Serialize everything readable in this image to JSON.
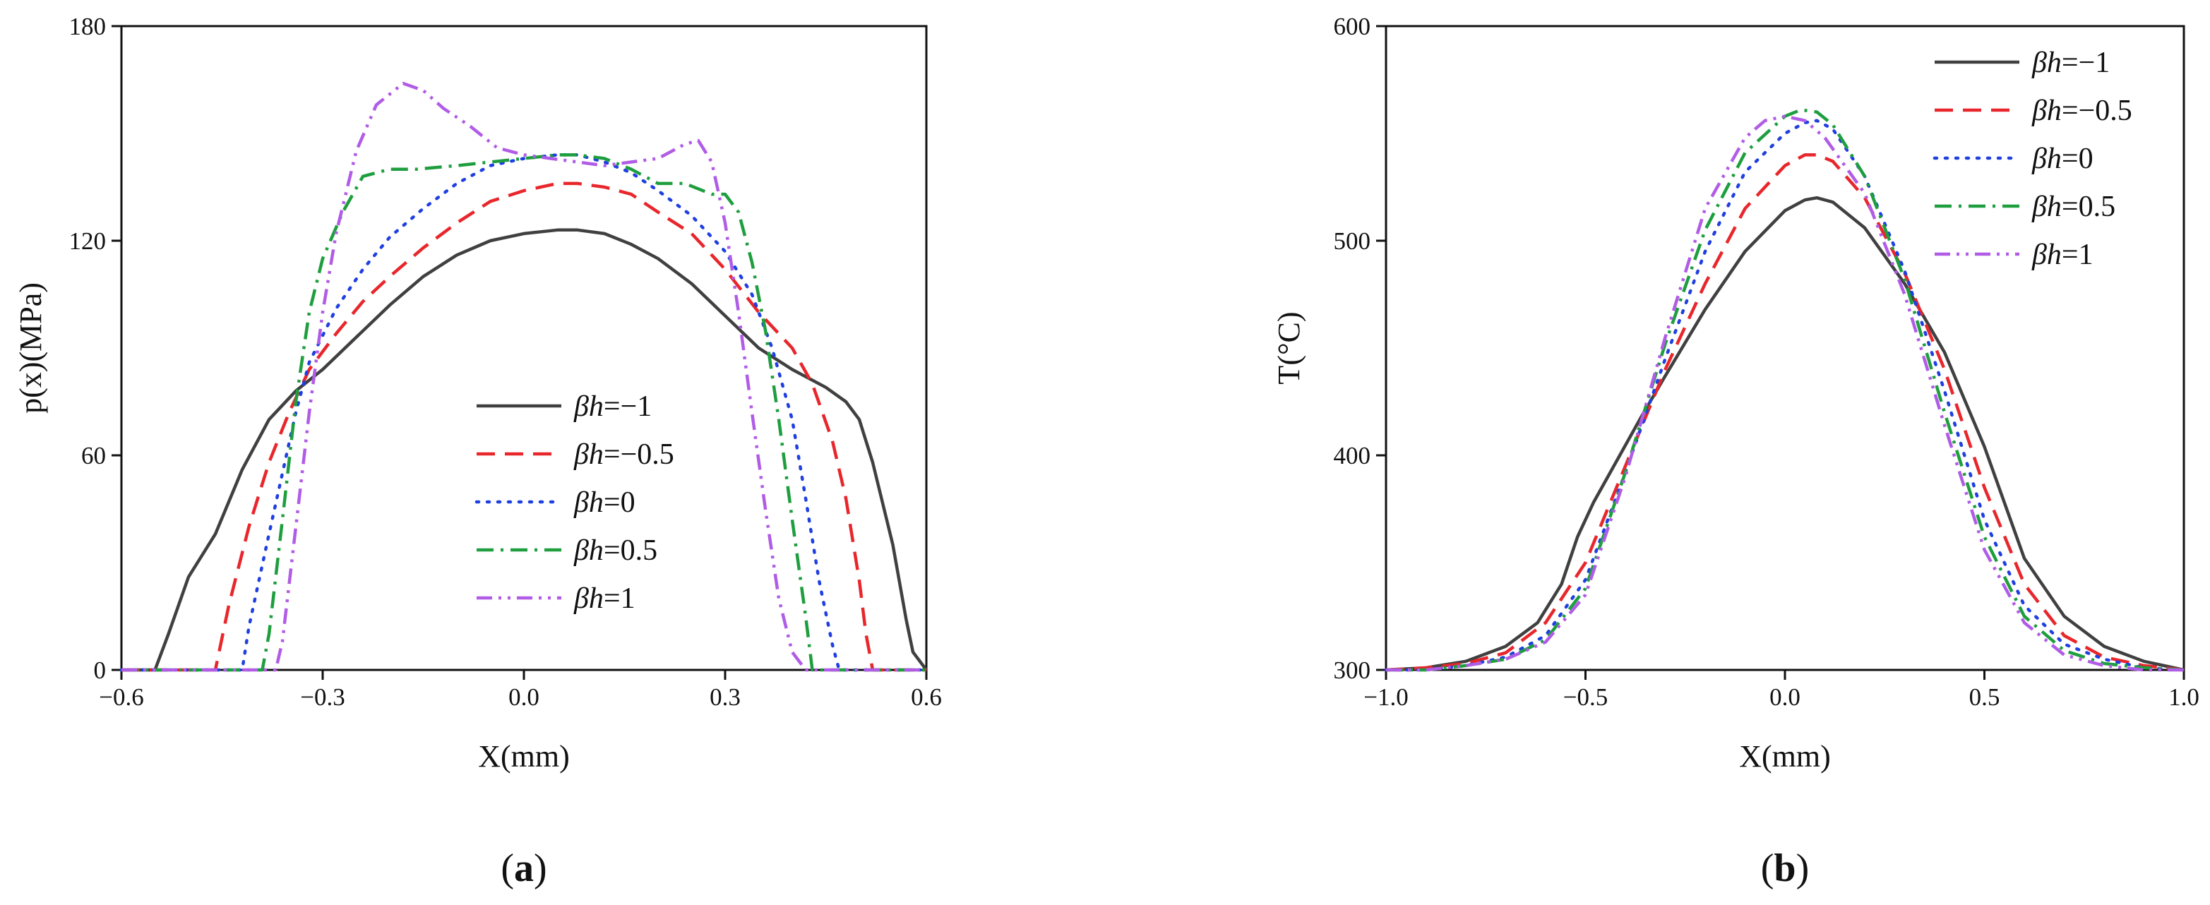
{
  "chart_data": [
    {
      "type": "line",
      "panel_label": "a",
      "xlabel": "X(mm)",
      "ylabel": "p(x)(MPa)",
      "xlim": [
        -0.6,
        0.6
      ],
      "ylim": [
        0,
        180
      ],
      "xticks": [
        -0.6,
        -0.3,
        0.0,
        0.3,
        0.6
      ],
      "xtick_labels": [
        "−0.6",
        "−0.3",
        "0.0",
        "0.3",
        "0.6"
      ],
      "yticks": [
        0,
        60,
        120,
        180
      ],
      "ytick_labels": [
        "0",
        "60",
        "120",
        "180"
      ],
      "legend_position": "center-right",
      "series": [
        {
          "name": "=−1",
          "color": "#404040",
          "dash": "solid",
          "x": [
            -0.6,
            -0.55,
            -0.53,
            -0.5,
            -0.46,
            -0.42,
            -0.38,
            -0.34,
            -0.3,
            -0.25,
            -0.2,
            -0.15,
            -0.1,
            -0.05,
            0.0,
            0.05,
            0.08,
            0.12,
            0.16,
            0.2,
            0.25,
            0.3,
            0.35,
            0.4,
            0.45,
            0.48,
            0.5,
            0.52,
            0.55,
            0.57,
            0.58,
            0.6
          ],
          "y": [
            0,
            0,
            10,
            26,
            38,
            56,
            70,
            78,
            84,
            93,
            102,
            110,
            116,
            120,
            122,
            123,
            123,
            122,
            119,
            115,
            108,
            99,
            90,
            84,
            79,
            75,
            70,
            58,
            35,
            14,
            5,
            0
          ]
        },
        {
          "name": "=−0.5",
          "color": "#e8262b",
          "dash": "long-dash",
          "x": [
            -0.6,
            -0.46,
            -0.44,
            -0.41,
            -0.38,
            -0.35,
            -0.32,
            -0.28,
            -0.24,
            -0.2,
            -0.15,
            -0.1,
            -0.05,
            0.0,
            0.05,
            0.08,
            0.12,
            0.16,
            0.2,
            0.25,
            0.3,
            0.35,
            0.4,
            0.43,
            0.46,
            0.48,
            0.5,
            0.51,
            0.52,
            0.6
          ],
          "y": [
            0,
            0,
            18,
            40,
            58,
            72,
            84,
            94,
            103,
            110,
            118,
            125,
            131,
            134,
            136,
            136,
            135,
            133,
            128,
            122,
            112,
            100,
            90,
            80,
            64,
            48,
            25,
            10,
            0,
            0
          ]
        },
        {
          "name": "=0",
          "color": "#1f3fe0",
          "dash": "dotted",
          "x": [
            -0.6,
            -0.42,
            -0.41,
            -0.38,
            -0.36,
            -0.34,
            -0.32,
            -0.28,
            -0.24,
            -0.2,
            -0.15,
            -0.1,
            -0.05,
            0.0,
            0.05,
            0.08,
            0.12,
            0.16,
            0.2,
            0.25,
            0.3,
            0.34,
            0.37,
            0.4,
            0.42,
            0.44,
            0.46,
            0.47,
            0.6
          ],
          "y": [
            0,
            0,
            12,
            38,
            55,
            72,
            86,
            101,
            112,
            121,
            129,
            136,
            141,
            143,
            144,
            144,
            142,
            139,
            134,
            127,
            117,
            105,
            90,
            70,
            48,
            25,
            7,
            0,
            0
          ]
        },
        {
          "name": "=0.5",
          "color": "#1e9e3e",
          "dash": "dash-dot",
          "x": [
            -0.6,
            -0.39,
            -0.38,
            -0.36,
            -0.34,
            -0.32,
            -0.3,
            -0.27,
            -0.24,
            -0.2,
            -0.16,
            -0.1,
            -0.05,
            0.0,
            0.05,
            0.08,
            0.12,
            0.16,
            0.2,
            0.24,
            0.28,
            0.3,
            0.32,
            0.34,
            0.36,
            0.38,
            0.4,
            0.42,
            0.43,
            0.6
          ],
          "y": [
            0,
            0,
            10,
            42,
            75,
            100,
            115,
            128,
            138,
            140,
            140,
            141,
            142,
            143,
            144,
            144,
            143,
            140,
            136,
            136,
            133,
            133,
            128,
            114,
            95,
            70,
            42,
            15,
            0,
            0
          ]
        },
        {
          "name": "=1",
          "color": "#b15ce6",
          "dash": "dash-dot-dot",
          "x": [
            -0.6,
            -0.37,
            -0.36,
            -0.34,
            -0.32,
            -0.3,
            -0.28,
            -0.25,
            -0.22,
            -0.18,
            -0.15,
            -0.12,
            -0.08,
            -0.04,
            0.0,
            0.04,
            0.08,
            0.12,
            0.16,
            0.2,
            0.24,
            0.26,
            0.28,
            0.3,
            0.32,
            0.34,
            0.36,
            0.38,
            0.4,
            0.42,
            0.6
          ],
          "y": [
            0,
            0,
            8,
            40,
            72,
            100,
            122,
            145,
            158,
            164,
            162,
            157,
            152,
            146,
            144,
            143,
            142,
            141,
            142,
            143,
            147,
            148,
            142,
            125,
            100,
            72,
            45,
            20,
            5,
            0,
            0
          ]
        }
      ]
    },
    {
      "type": "line",
      "panel_label": "b",
      "xlabel": "X(mm)",
      "ylabel": "T(°C)",
      "xlim": [
        -1.0,
        1.0
      ],
      "ylim": [
        300,
        600
      ],
      "xticks": [
        -1.0,
        -0.5,
        0.0,
        0.5,
        1.0
      ],
      "xtick_labels": [
        "−1.0",
        "−0.5",
        "0.0",
        "0.5",
        "1.0"
      ],
      "yticks": [
        300,
        400,
        500,
        600
      ],
      "ytick_labels": [
        "300",
        "400",
        "500",
        "600"
      ],
      "legend_position": "top-right",
      "series": [
        {
          "name": "=−1",
          "color": "#404040",
          "dash": "solid",
          "x": [
            -1.0,
            -0.9,
            -0.8,
            -0.7,
            -0.62,
            -0.56,
            -0.52,
            -0.48,
            -0.42,
            -0.36,
            -0.3,
            -0.2,
            -0.1,
            0.0,
            0.05,
            0.08,
            0.12,
            0.2,
            0.3,
            0.4,
            0.5,
            0.6,
            0.7,
            0.8,
            0.9,
            1.0
          ],
          "y": [
            300,
            301,
            304,
            311,
            322,
            340,
            362,
            378,
            398,
            418,
            437,
            468,
            495,
            514,
            519,
            520,
            518,
            506,
            480,
            448,
            404,
            352,
            325,
            311,
            304,
            300
          ]
        },
        {
          "name": "=−0.5",
          "color": "#e8262b",
          "dash": "long-dash",
          "x": [
            -1.0,
            -0.9,
            -0.8,
            -0.7,
            -0.6,
            -0.5,
            -0.4,
            -0.3,
            -0.2,
            -0.1,
            0.0,
            0.05,
            0.08,
            0.12,
            0.2,
            0.3,
            0.4,
            0.5,
            0.6,
            0.7,
            0.8,
            0.9,
            1.0
          ],
          "y": [
            300,
            301,
            303,
            308,
            322,
            350,
            395,
            440,
            480,
            515,
            535,
            540,
            540,
            537,
            520,
            485,
            440,
            385,
            340,
            316,
            306,
            302,
            300
          ]
        },
        {
          "name": "=0",
          "color": "#1f3fe0",
          "dash": "dotted",
          "x": [
            -1.0,
            -0.9,
            -0.8,
            -0.7,
            -0.6,
            -0.5,
            -0.4,
            -0.3,
            -0.2,
            -0.1,
            0.0,
            0.05,
            0.08,
            0.12,
            0.2,
            0.3,
            0.4,
            0.5,
            0.6,
            0.7,
            0.8,
            0.9,
            1.0
          ],
          "y": [
            300,
            300,
            302,
            306,
            316,
            342,
            392,
            445,
            495,
            532,
            550,
            555,
            556,
            552,
            530,
            486,
            430,
            370,
            330,
            312,
            305,
            301,
            300
          ]
        },
        {
          "name": "=0.5",
          "color": "#1e9e3e",
          "dash": "dash-dot",
          "x": [
            -1.0,
            -0.9,
            -0.8,
            -0.7,
            -0.6,
            -0.5,
            -0.4,
            -0.3,
            -0.2,
            -0.1,
            0.0,
            0.04,
            0.08,
            0.12,
            0.2,
            0.3,
            0.4,
            0.5,
            0.6,
            0.7,
            0.8,
            0.9,
            1.0
          ],
          "y": [
            300,
            300,
            302,
            305,
            314,
            338,
            392,
            452,
            505,
            541,
            558,
            561,
            560,
            554,
            530,
            482,
            420,
            362,
            325,
            309,
            303,
            301,
            300
          ]
        },
        {
          "name": "=1",
          "color": "#b15ce6",
          "dash": "dash-dot-dot",
          "x": [
            -1.0,
            -0.9,
            -0.8,
            -0.7,
            -0.6,
            -0.5,
            -0.4,
            -0.3,
            -0.2,
            -0.1,
            -0.05,
            0.0,
            0.05,
            0.1,
            0.2,
            0.3,
            0.4,
            0.5,
            0.6,
            0.7,
            0.8,
            0.9,
            1.0
          ],
          "y": [
            300,
            300,
            302,
            305,
            313,
            335,
            390,
            455,
            515,
            548,
            556,
            558,
            556,
            548,
            522,
            475,
            414,
            356,
            322,
            307,
            302,
            300,
            300
          ]
        }
      ]
    }
  ]
}
